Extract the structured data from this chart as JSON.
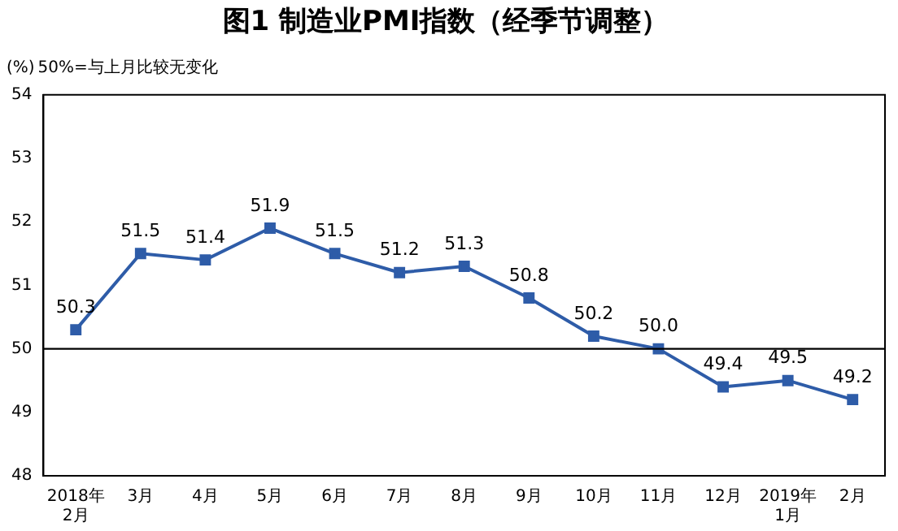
{
  "chart_data": {
    "type": "line",
    "title": "图1 制造业PMI指数（经季节调整）",
    "ylabel": "(%)",
    "annotations": [
      "50%=与上月比较无变化"
    ],
    "categories": [
      "2018年\n2月",
      "3月",
      "4月",
      "5月",
      "6月",
      "7月",
      "8月",
      "9月",
      "10月",
      "11月",
      "12月",
      "2019年\n1月",
      "2月"
    ],
    "series": [
      {
        "color": "#2e5ca8",
        "values": [
          50.3,
          51.5,
          51.4,
          51.9,
          51.5,
          51.2,
          51.3,
          50.8,
          50.2,
          50.0,
          49.4,
          49.5,
          49.2
        ],
        "value_labels": [
          "50.3",
          "51.5",
          "51.4",
          "51.9",
          "51.5",
          "51.2",
          "51.3",
          "50.8",
          "50.2",
          "50.0",
          "49.4",
          "49.5",
          "49.2"
        ]
      }
    ],
    "ylim": [
      48,
      54
    ],
    "yticks": [
      48,
      49,
      50,
      51,
      52,
      53,
      54
    ],
    "ref_lines": [
      {
        "axis": "y",
        "value": 50,
        "color": "#000000"
      }
    ],
    "grid": false,
    "legend": false,
    "marker": "square",
    "line_style": "solid"
  }
}
